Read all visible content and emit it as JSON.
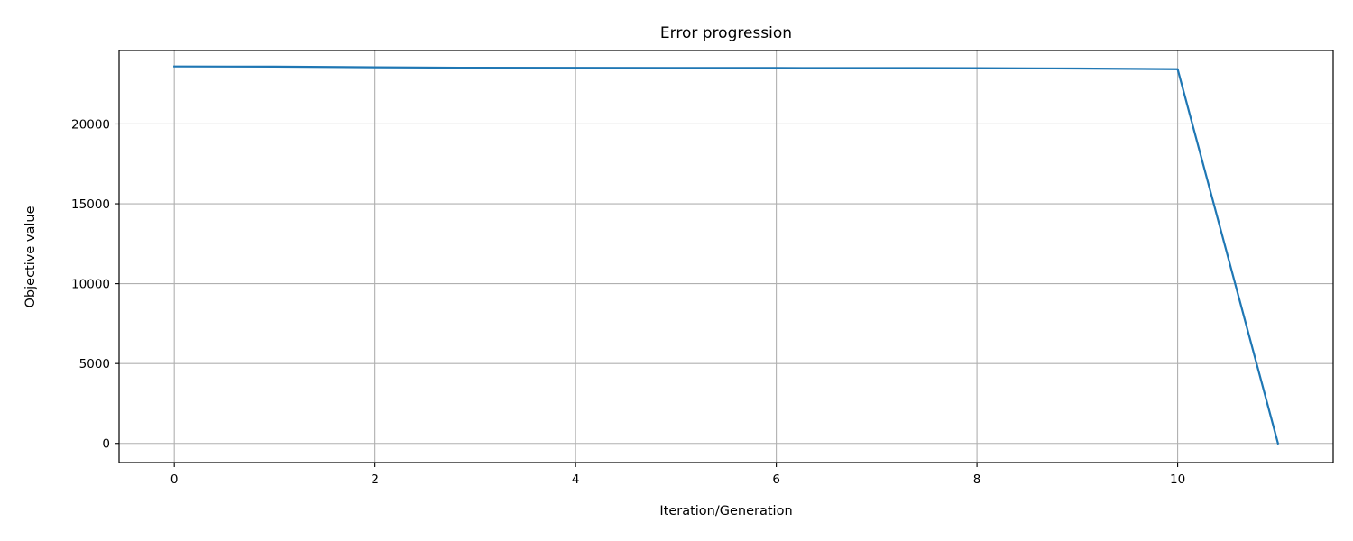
{
  "chart_data": {
    "type": "line",
    "title": "Error progression",
    "xlabel": "Iteration/Generation",
    "ylabel": "Objective value",
    "xlim": [
      -0.55,
      11.55
    ],
    "ylim": [
      -1200,
      24600
    ],
    "xticks": [
      0,
      2,
      4,
      6,
      8,
      10
    ],
    "yticks": [
      0,
      5000,
      10000,
      15000,
      20000
    ],
    "grid": true,
    "series": [
      {
        "color": "#1f77b4",
        "x": [
          0,
          1,
          2,
          3,
          4,
          5,
          6,
          7,
          8,
          9,
          10,
          11
        ],
        "y": [
          23600,
          23590,
          23550,
          23520,
          23515,
          23510,
          23505,
          23500,
          23495,
          23470,
          23430,
          0
        ]
      }
    ]
  }
}
